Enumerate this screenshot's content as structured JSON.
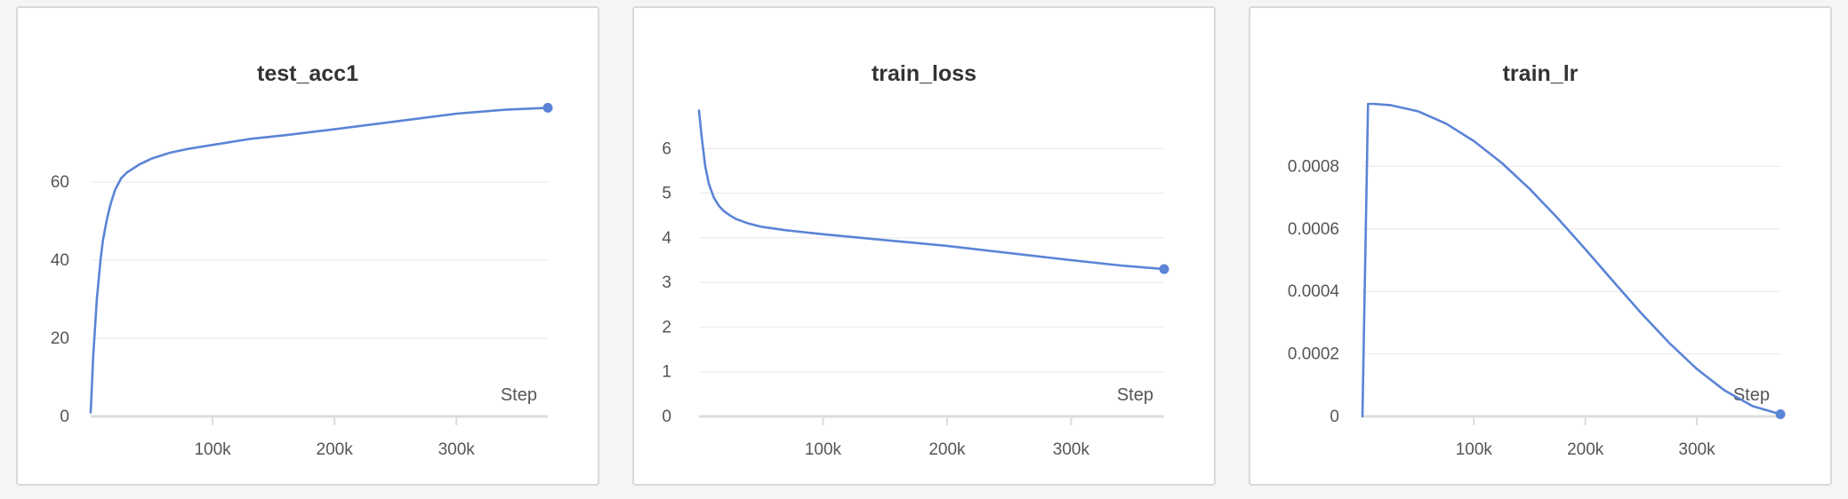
{
  "accent_color": "#5b84d6",
  "chart_data": [
    {
      "type": "line",
      "title": "test_acc1",
      "xlabel": "Step",
      "ylabel": "",
      "xlim": [
        0,
        375000
      ],
      "ylim": [
        0,
        80
      ],
      "xticks": [
        100000,
        200000,
        300000
      ],
      "xtick_labels": [
        "100k",
        "200k",
        "300k"
      ],
      "yticks": [
        0,
        20,
        40,
        60
      ],
      "ytick_labels": [
        "0",
        "20",
        "40",
        "60"
      ],
      "grid": true,
      "series": [
        {
          "color": "#5b84d6",
          "x": [
            0,
            2000,
            5000,
            8000,
            10000,
            13000,
            16000,
            20000,
            25000,
            30000,
            40000,
            50000,
            65000,
            80000,
            100000,
            130000,
            160000,
            200000,
            250000,
            300000,
            340000,
            375000
          ],
          "y": [
            1,
            15,
            30,
            40,
            45,
            50,
            54,
            58,
            61,
            62.5,
            64.5,
            66,
            67.5,
            68.5,
            69.5,
            71,
            72,
            73.5,
            75.5,
            77.5,
            78.5,
            79
          ]
        }
      ]
    },
    {
      "type": "line",
      "title": "train_loss",
      "xlabel": "Step",
      "ylabel": "",
      "xlim": [
        0,
        375000
      ],
      "ylim": [
        0,
        7
      ],
      "xticks": [
        100000,
        200000,
        300000
      ],
      "xtick_labels": [
        "100k",
        "200k",
        "300k"
      ],
      "yticks": [
        0,
        1,
        2,
        3,
        4,
        5,
        6
      ],
      "ytick_labels": [
        "0",
        "1",
        "2",
        "3",
        "4",
        "5",
        "6"
      ],
      "grid": true,
      "series": [
        {
          "color": "#5b84d6",
          "x": [
            0,
            2000,
            5000,
            8000,
            12000,
            16000,
            20000,
            25000,
            30000,
            40000,
            50000,
            70000,
            100000,
            150000,
            200000,
            250000,
            300000,
            340000,
            375000
          ],
          "y": [
            6.85,
            6.3,
            5.6,
            5.2,
            4.9,
            4.72,
            4.6,
            4.5,
            4.42,
            4.32,
            4.25,
            4.17,
            4.08,
            3.95,
            3.82,
            3.66,
            3.5,
            3.38,
            3.3
          ]
        }
      ]
    },
    {
      "type": "line",
      "title": "train_lr",
      "xlabel": "Step",
      "ylabel": "",
      "xlim": [
        0,
        375000
      ],
      "ylim": [
        0,
        0.001
      ],
      "xticks": [
        100000,
        200000,
        300000
      ],
      "xtick_labels": [
        "100k",
        "200k",
        "300k"
      ],
      "yticks": [
        0,
        0.0002,
        0.0004,
        0.0006,
        0.0008
      ],
      "ytick_labels": [
        "0",
        "0.0002",
        "0.0004",
        "0.0006",
        "0.0008"
      ],
      "grid": true,
      "series": [
        {
          "color": "#5b84d6",
          "x": [
            0,
            5000,
            10000,
            25000,
            50000,
            75000,
            100000,
            125000,
            150000,
            175000,
            200000,
            225000,
            250000,
            275000,
            300000,
            325000,
            350000,
            375000
          ],
          "y": [
            0,
            0.001,
            0.001,
            0.000996,
            0.000976,
            0.000937,
            0.000881,
            0.000811,
            0.000728,
            0.000635,
            0.000535,
            0.000432,
            0.000331,
            0.000236,
            0.000152,
            8.3e-05,
            3.3e-05,
            7e-06
          ]
        }
      ]
    }
  ]
}
